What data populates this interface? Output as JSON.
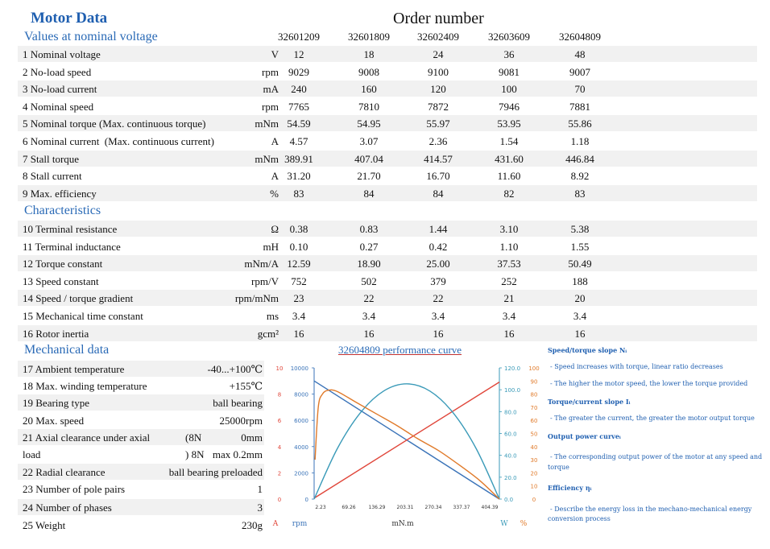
{
  "title": "Motor Data",
  "order_label": "Order number",
  "section1": "Values at nominal voltage",
  "section2": "Characteristics",
  "section3": "Mechanical data",
  "order_numbers": [
    "32601209",
    "32601809",
    "32602409",
    "32603609",
    "32604809"
  ],
  "nominal_rows": [
    {
      "label": "1 Nominal voltage",
      "unit": "V",
      "values": [
        "12",
        "18",
        "24",
        "36",
        "48"
      ]
    },
    {
      "label": "2 No-load speed",
      "unit": "rpm",
      "values": [
        "9029",
        "9008",
        "9100",
        "9081",
        "9007"
      ]
    },
    {
      "label": "3 No-load current",
      "unit": "mA",
      "values": [
        "240",
        "160",
        "120",
        "100",
        "70"
      ]
    },
    {
      "label": "4 Nominal speed",
      "unit": "rpm",
      "values": [
        "7765",
        "7810",
        "7872",
        "7946",
        "7881"
      ]
    },
    {
      "label": "5 Nominal torque (Max. continuous torque)",
      "unit": "mNm",
      "values": [
        "54.59",
        "54.95",
        "55.97",
        "53.95",
        "55.86"
      ]
    },
    {
      "label": "6 Nominal current  (Max. continuous current)",
      "unit": "A",
      "values": [
        "4.57",
        "3.07",
        "2.36",
        "1.54",
        "1.18"
      ]
    },
    {
      "label": "7 Stall torque",
      "unit": "mNm",
      "values": [
        "389.91",
        "407.04",
        "414.57",
        "431.60",
        "446.84"
      ]
    },
    {
      "label": "8 Stall current",
      "unit": "A",
      "values": [
        "31.20",
        "21.70",
        "16.70",
        "11.60",
        "8.92"
      ]
    },
    {
      "label": "9 Max. efficiency",
      "unit": "%",
      "values": [
        "83",
        "84",
        "84",
        "82",
        "83"
      ]
    }
  ],
  "char_rows": [
    {
      "label": "10 Terminal resistance",
      "unit": "Ω",
      "values": [
        "0.38",
        "0.83",
        "1.44",
        "3.10",
        "5.38"
      ]
    },
    {
      "label": "11 Terminal inductance",
      "unit": "mH",
      "values": [
        "0.10",
        "0.27",
        "0.42",
        "1.10",
        "1.55"
      ]
    },
    {
      "label": "12 Torque constant",
      "unit": "mNm/A",
      "values": [
        "12.59",
        "18.90",
        "25.00",
        "37.53",
        "50.49"
      ]
    },
    {
      "label": "13 Speed constant",
      "unit": "rpm/V",
      "values": [
        "752",
        "502",
        "379",
        "252",
        "188"
      ]
    },
    {
      "label": "14 Speed / torque gradient",
      "unit": "rpm/mNm",
      "values": [
        "23",
        "22",
        "22",
        "21",
        "20"
      ]
    },
    {
      "label": "15 Mechanical time constant",
      "unit": "ms",
      "values": [
        "3.4",
        "3.4",
        "3.4",
        "3.4",
        "3.4"
      ]
    },
    {
      "label": "16 Rotor inertia",
      "unit": "gcm²",
      "values": [
        "16",
        "16",
        "16",
        "16",
        "16"
      ]
    }
  ],
  "mech_rows": [
    {
      "label": "17 Ambient temperature",
      "value": "-40...+100℃"
    },
    {
      "label": "18 Max. winding temperature",
      "value": "+155℃"
    },
    {
      "label": "19 Bearing type",
      "value": "ball bearing"
    },
    {
      "label": "20 Max. speed",
      "value": "25000rpm"
    },
    {
      "label": "21 Axial clearance under axial",
      "mid": "(8N",
      "value": "0mm"
    },
    {
      "label": "load",
      "mid": ")  8N",
      "value": "max 0.2mm"
    },
    {
      "label": "22 Radial clearance",
      "value": "ball bearing preloaded"
    },
    {
      "label": "23 Number of pole pairs",
      "value": "1"
    },
    {
      "label": "24 Number of phases",
      "value": "3"
    },
    {
      "label": "25 Weight",
      "value": "230g"
    }
  ],
  "chart_data": {
    "type": "line",
    "title": "32604809 performance curve",
    "xlabel": "mN.m",
    "x_ticks": [
      "2.23",
      "69.26",
      "136.29",
      "203.31",
      "270.34",
      "337.37",
      "404.39"
    ],
    "xlim": [
      0,
      446.84
    ],
    "axes": {
      "current": {
        "unit": "A",
        "ticks": [
          "0",
          "2",
          "4",
          "6",
          "8",
          "10"
        ],
        "range": [
          0,
          10
        ],
        "color": "#e0463a"
      },
      "speed": {
        "unit": "rpm",
        "ticks": [
          "0",
          "2000",
          "4000",
          "6000",
          "8000",
          "10000"
        ],
        "range": [
          0,
          10000
        ],
        "color": "#3a73b8"
      },
      "power": {
        "unit": "W",
        "ticks": [
          "0.0",
          "20.0",
          "40.0",
          "60.0",
          "80.0",
          "100.0",
          "120.0"
        ],
        "range": [
          0,
          120
        ],
        "color": "#3a9ab8"
      },
      "efficiency": {
        "unit": "%",
        "ticks": [
          "0",
          "10",
          "20",
          "30",
          "40",
          "50",
          "60",
          "70",
          "80",
          "90",
          "100"
        ],
        "range": [
          0,
          100
        ],
        "color": "#e07a2a"
      }
    },
    "series": [
      {
        "name": "rpm",
        "color": "#3a73b8",
        "axis": "speed",
        "x": [
          0,
          446.84
        ],
        "y": [
          9007,
          0
        ]
      },
      {
        "name": "A",
        "color": "#e0463a",
        "axis": "current",
        "x": [
          0,
          446.84
        ],
        "y": [
          0.07,
          8.92
        ]
      },
      {
        "name": "W",
        "color": "#3a9ab8",
        "axis": "power",
        "x": [
          0,
          55.86,
          111.71,
          167.57,
          223.42,
          279.28,
          335.13,
          390.99,
          446.84
        ],
        "y": [
          0,
          46.1,
          79.0,
          98.8,
          105.4,
          98.8,
          79.0,
          46.1,
          0
        ]
      },
      {
        "name": "%",
        "color": "#e07a2a",
        "axis": "efficiency",
        "x": [
          2.23,
          10,
          20,
          35,
          55.86,
          100,
          150,
          200,
          250,
          300,
          350,
          400,
          446.84
        ],
        "y": [
          30,
          70,
          80,
          83,
          82,
          74,
          65,
          56,
          46,
          37,
          26,
          14,
          0
        ]
      }
    ]
  },
  "legend": [
    {
      "text": "Speed/torque slope Nᵢ",
      "bold": true
    },
    {
      "text": "- Speed increases with torque, linear ratio decreases",
      "bold": false
    },
    {
      "text": "- The higher the motor speed, the lower the torque provided",
      "bold": false
    },
    {
      "text": "Torque/current slope Iᵢ",
      "bold": true
    },
    {
      "text": "- The greater the current, the greater the motor output torque",
      "bold": false
    },
    {
      "text": "Output power curveᵢ",
      "bold": true
    },
    {
      "text": "- The corresponding output power of the motor at any speed and",
      "bold": false
    },
    {
      "text": "torque",
      "bold": false
    },
    {
      "text": "Efficiency ηᵢ",
      "bold": true
    },
    {
      "text": "- Describe the energy loss in the mechano-mechanical energy",
      "bold": false
    },
    {
      "text": "conversion process",
      "bold": false
    }
  ]
}
